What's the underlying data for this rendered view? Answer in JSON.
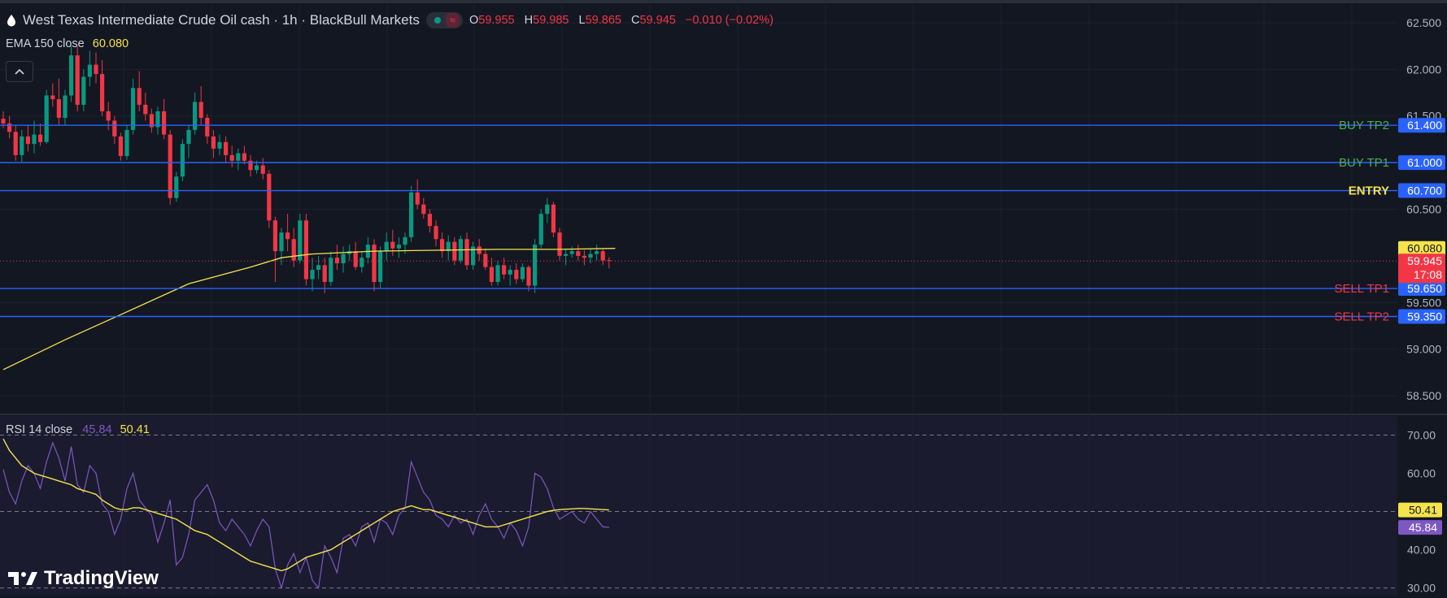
{
  "header": {
    "title": "West Texas Intermediate Crude Oil cash · 1h · BlackBull Markets",
    "ohlc": [
      {
        "k": "O",
        "v": "59.955"
      },
      {
        "k": "H",
        "v": "59.985"
      },
      {
        "k": "L",
        "v": "59.865"
      },
      {
        "k": "C",
        "v": "59.945"
      }
    ],
    "change": "−0.010 (−0.02%)"
  },
  "indicators": {
    "ema_label": "EMA 150 close",
    "ema_value": "60.080",
    "rsi_label": "RSI 14 close",
    "rsi_value": "45.84",
    "rsi_ma_value": "50.41"
  },
  "collapse_glyph": "^",
  "brand": "TradingView",
  "colors": {
    "background": "#131722",
    "up": "#089981",
    "down": "#f23645",
    "level_line": "#2962ff",
    "ema": "#f5e34b",
    "rsi": "#7e57c2",
    "buy_label": "#4caf50",
    "sell_label": "#f23645",
    "entry_label": "#f5e34b"
  },
  "chart_data": [
    {
      "type": "candlestick",
      "title": "West Texas Intermediate Crude Oil cash · 1h · BlackBull Markets",
      "ylim": [
        58.3,
        62.7
      ],
      "y_ticks": [
        "62.500",
        "62.000",
        "61.500",
        "60.500",
        "59.500",
        "59.000",
        "58.500"
      ],
      "candles": [
        [
          61.47,
          61.55,
          61.37,
          61.42
        ],
        [
          61.42,
          61.5,
          61.26,
          61.33
        ],
        [
          61.33,
          61.4,
          61.02,
          61.08
        ],
        [
          61.08,
          61.35,
          61.0,
          61.28
        ],
        [
          61.28,
          61.4,
          61.12,
          61.2
        ],
        [
          61.2,
          61.45,
          61.1,
          61.3
        ],
        [
          61.3,
          61.42,
          61.18,
          61.22
        ],
        [
          61.22,
          61.78,
          61.2,
          61.72
        ],
        [
          61.72,
          61.85,
          61.6,
          61.68
        ],
        [
          61.68,
          61.9,
          61.4,
          61.48
        ],
        [
          61.48,
          61.78,
          61.4,
          61.72
        ],
        [
          61.72,
          62.25,
          61.65,
          62.15
        ],
        [
          62.15,
          62.25,
          61.55,
          61.62
        ],
        [
          61.62,
          62.0,
          61.55,
          61.92
        ],
        [
          61.92,
          62.2,
          61.82,
          62.05
        ],
        [
          62.05,
          62.18,
          61.85,
          61.95
        ],
        [
          61.95,
          62.1,
          61.5,
          61.55
        ],
        [
          61.55,
          61.65,
          61.35,
          61.45
        ],
        [
          61.45,
          61.5,
          61.2,
          61.28
        ],
        [
          61.28,
          61.32,
          61.02,
          61.07
        ],
        [
          61.07,
          61.4,
          61.03,
          61.35
        ],
        [
          61.35,
          61.9,
          61.3,
          61.8
        ],
        [
          61.8,
          61.98,
          61.55,
          61.62
        ],
        [
          61.62,
          61.75,
          61.45,
          61.52
        ],
        [
          61.52,
          61.58,
          61.32,
          61.38
        ],
        [
          61.38,
          61.6,
          61.3,
          61.55
        ],
        [
          61.55,
          61.68,
          61.25,
          61.3
        ],
        [
          61.3,
          61.35,
          60.55,
          60.62
        ],
        [
          60.62,
          60.9,
          60.58,
          60.85
        ],
        [
          60.85,
          61.25,
          60.8,
          61.2
        ],
        [
          61.2,
          61.4,
          61.05,
          61.35
        ],
        [
          61.35,
          61.75,
          61.3,
          61.65
        ],
        [
          61.65,
          61.82,
          61.4,
          61.48
        ],
        [
          61.48,
          61.52,
          61.2,
          61.28
        ],
        [
          61.28,
          61.35,
          61.05,
          61.15
        ],
        [
          61.15,
          61.3,
          61.08,
          61.22
        ],
        [
          61.22,
          61.28,
          61.0,
          61.08
        ],
        [
          61.08,
          61.18,
          60.95,
          61.02
        ],
        [
          61.02,
          61.15,
          60.92,
          61.1
        ],
        [
          61.1,
          61.18,
          60.98,
          61.02
        ],
        [
          61.02,
          61.08,
          60.85,
          60.92
        ],
        [
          60.92,
          61.02,
          60.88,
          60.97
        ],
        [
          60.97,
          61.05,
          60.82,
          60.88
        ],
        [
          60.88,
          60.92,
          60.3,
          60.38
        ],
        [
          60.38,
          60.42,
          59.72,
          60.05
        ],
        [
          60.05,
          60.3,
          59.9,
          60.25
        ],
        [
          60.25,
          60.45,
          60.05,
          60.18
        ],
        [
          60.18,
          60.3,
          59.88,
          59.95
        ],
        [
          59.95,
          60.45,
          59.92,
          60.38
        ],
        [
          60.38,
          60.45,
          59.68,
          59.75
        ],
        [
          59.75,
          59.98,
          59.62,
          59.85
        ],
        [
          59.85,
          60.0,
          59.75,
          59.9
        ],
        [
          59.9,
          59.98,
          59.6,
          59.72
        ],
        [
          59.72,
          60.05,
          59.68,
          59.98
        ],
        [
          59.98,
          60.12,
          59.85,
          59.92
        ],
        [
          59.92,
          60.1,
          59.82,
          60.02
        ],
        [
          60.02,
          60.12,
          59.95,
          60.05
        ],
        [
          60.05,
          60.15,
          59.85,
          59.88
        ],
        [
          59.88,
          60.05,
          59.82,
          59.98
        ],
        [
          59.98,
          60.2,
          59.92,
          60.12
        ],
        [
          60.12,
          60.18,
          59.62,
          59.72
        ],
        [
          59.72,
          60.1,
          59.65,
          60.05
        ],
        [
          60.05,
          60.25,
          59.95,
          60.15
        ],
        [
          60.15,
          60.28,
          60.0,
          60.08
        ],
        [
          60.08,
          60.2,
          59.98,
          60.12
        ],
        [
          60.12,
          60.25,
          60.02,
          60.2
        ],
        [
          60.2,
          60.75,
          60.15,
          60.68
        ],
        [
          60.68,
          60.82,
          60.5,
          60.55
        ],
        [
          60.55,
          60.62,
          60.4,
          60.45
        ],
        [
          60.45,
          60.5,
          60.25,
          60.32
        ],
        [
          60.32,
          60.38,
          60.1,
          60.18
        ],
        [
          60.18,
          60.25,
          59.98,
          60.05
        ],
        [
          60.05,
          60.22,
          59.95,
          60.15
        ],
        [
          60.15,
          60.2,
          59.9,
          59.95
        ],
        [
          59.95,
          60.22,
          59.92,
          60.18
        ],
        [
          60.18,
          60.25,
          59.85,
          59.9
        ],
        [
          59.9,
          60.15,
          59.85,
          60.1
        ],
        [
          60.1,
          60.18,
          59.95,
          60.02
        ],
        [
          60.02,
          60.08,
          59.85,
          59.88
        ],
        [
          59.88,
          59.98,
          59.68,
          59.72
        ],
        [
          59.72,
          59.95,
          59.68,
          59.9
        ],
        [
          59.9,
          59.98,
          59.75,
          59.8
        ],
        [
          59.8,
          59.9,
          59.68,
          59.85
        ],
        [
          59.85,
          59.92,
          59.7,
          59.75
        ],
        [
          59.75,
          59.92,
          59.72,
          59.88
        ],
        [
          59.88,
          59.9,
          59.62,
          59.68
        ],
        [
          59.68,
          60.18,
          59.6,
          60.12
        ],
        [
          60.12,
          60.5,
          60.08,
          60.45
        ],
        [
          60.45,
          60.62,
          60.35,
          60.55
        ],
        [
          60.55,
          60.58,
          60.2,
          60.25
        ],
        [
          60.25,
          60.3,
          59.95,
          60.0
        ],
        [
          60.0,
          60.08,
          59.9,
          60.02
        ],
        [
          60.02,
          60.1,
          59.98,
          60.05
        ],
        [
          60.05,
          60.12,
          59.95,
          60.0
        ],
        [
          60.0,
          60.06,
          59.9,
          59.98
        ],
        [
          59.98,
          60.08,
          59.92,
          60.02
        ],
        [
          60.02,
          60.12,
          59.95,
          60.05
        ],
        [
          60.05,
          60.08,
          59.9,
          59.95
        ],
        [
          59.955,
          59.985,
          59.865,
          59.945
        ]
      ],
      "ema": {
        "name": "EMA 150 close",
        "last": 60.08,
        "points": [
          [
            0,
            58.78
          ],
          [
            10,
            59.1
          ],
          [
            20,
            59.4
          ],
          [
            30,
            59.7
          ],
          [
            40,
            59.88
          ],
          [
            45,
            59.98
          ],
          [
            50,
            60.02
          ],
          [
            60,
            60.05
          ],
          [
            70,
            60.06
          ],
          [
            80,
            60.07
          ],
          [
            90,
            60.07
          ],
          [
            99,
            60.08
          ]
        ]
      },
      "levels": [
        {
          "label": "BUY TP2",
          "value": 61.4,
          "value_text": "61.400",
          "side": "buy"
        },
        {
          "label": "BUY TP1",
          "value": 61.0,
          "value_text": "61.000",
          "side": "buy"
        },
        {
          "label": "ENTRY",
          "value": 60.7,
          "value_text": "60.700",
          "side": "entry"
        },
        {
          "label": "SELL TP1",
          "value": 59.65,
          "value_text": "59.650",
          "side": "sell"
        },
        {
          "label": "SELL TP2",
          "value": 59.35,
          "value_text": "59.350",
          "side": "sell"
        }
      ],
      "price_tags": {
        "ema": "60.080",
        "last": "59.945",
        "countdown": "17:08"
      }
    },
    {
      "type": "line",
      "title": "RSI 14 close",
      "ylim": [
        28,
        75
      ],
      "y_ticks": [
        "70.00",
        "60.00",
        "40.00",
        "30.00"
      ],
      "bands": [
        70,
        50,
        30
      ],
      "series": [
        {
          "name": "RSI 14",
          "last": 45.84,
          "values": [
            61,
            55,
            52,
            58,
            62,
            60,
            56,
            63,
            68,
            64,
            58,
            67,
            57,
            55,
            62,
            60,
            52,
            50,
            44,
            48,
            56,
            60,
            53,
            51,
            49,
            42,
            47,
            53,
            36,
            38,
            44,
            53,
            55,
            57,
            53,
            47,
            45,
            48,
            46,
            44,
            41,
            45,
            48,
            46,
            35,
            30,
            36,
            39,
            34,
            38,
            32,
            30,
            41,
            38,
            34,
            43,
            44,
            41,
            46,
            47,
            42,
            48,
            47,
            44,
            49,
            51,
            63,
            59,
            55,
            53,
            49,
            48,
            46,
            49,
            47,
            48,
            44,
            49,
            52,
            48,
            46,
            43,
            47,
            45,
            41,
            46,
            60,
            59,
            56,
            51,
            48,
            49,
            50,
            48,
            47,
            50,
            48,
            46,
            45.84
          ]
        },
        {
          "name": "RSI MA",
          "last": 50.41,
          "values": [
            69,
            66,
            64,
            62,
            61,
            60,
            59.5,
            59,
            58.5,
            58,
            57.5,
            57,
            56,
            55.5,
            55,
            54.5,
            53,
            52,
            51,
            50.5,
            50.5,
            51,
            51,
            50.5,
            50,
            49.5,
            49,
            48.5,
            48,
            47,
            46,
            45,
            44.5,
            44,
            43,
            42,
            41,
            40,
            39,
            38,
            37,
            36.5,
            36,
            35.5,
            35,
            34.5,
            35,
            36,
            37,
            38,
            38.5,
            39,
            39.5,
            40,
            41,
            42,
            43,
            44,
            45,
            46,
            47,
            48,
            49,
            50,
            50.5,
            51,
            51.5,
            51,
            50.5,
            50.5,
            50,
            49.5,
            49,
            48.5,
            48,
            47.5,
            47,
            46.5,
            46,
            46,
            46,
            46.5,
            47,
            47.5,
            48,
            48.5,
            49,
            49.5,
            50,
            50.3,
            50.5,
            50.6,
            50.7,
            50.8,
            50.8,
            50.7,
            50.6,
            50.5,
            50.41
          ]
        }
      ],
      "price_tags": {
        "rsi_ma": "50.41",
        "rsi": "45.84"
      }
    }
  ]
}
